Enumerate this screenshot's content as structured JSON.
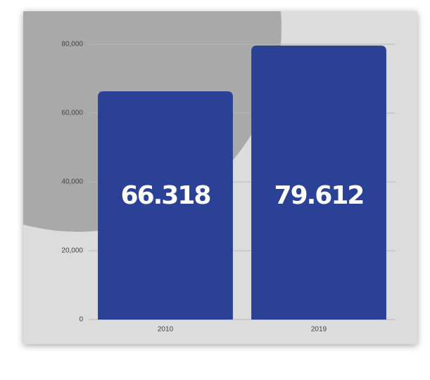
{
  "chart_data": {
    "type": "bar",
    "categories": [
      "2010",
      "2019"
    ],
    "values": [
      66318,
      79612
    ],
    "value_labels": [
      "66.318",
      "79.612"
    ],
    "color": "#2b4196",
    "ylim": [
      0,
      80000
    ],
    "yticks": [
      0,
      {
        "value": 20000,
        "label": "20,000"
      },
      {
        "value": 40000,
        "label": "40,000"
      },
      {
        "value": 60000,
        "label": "60,000"
      },
      {
        "value": 80000,
        "label": "80,000"
      }
    ],
    "grid": true
  }
}
